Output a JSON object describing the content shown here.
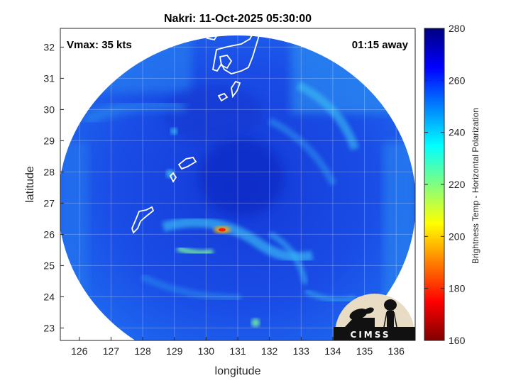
{
  "title": "Nakri: 11-Oct-2025 05:30:00",
  "overlay": {
    "vmax": "Vmax: 35 kts",
    "time_away": "01:15 away"
  },
  "axes": {
    "xlabel": "longitude",
    "ylabel": "latitude",
    "xticks": [
      126,
      127,
      128,
      129,
      130,
      131,
      132,
      133,
      134,
      135,
      136
    ],
    "yticks": [
      23,
      24,
      25,
      26,
      27,
      28,
      29,
      30,
      31,
      32
    ],
    "xlim": [
      125.4,
      136.6
    ],
    "ylim": [
      22.6,
      32.6
    ],
    "grid": true
  },
  "colorbar": {
    "label": "Brightness Temp - Horizontal Polarization",
    "ticks": [
      160,
      180,
      200,
      220,
      240,
      260,
      280
    ],
    "range": [
      160,
      280
    ],
    "colormap": "jet"
  },
  "logo": {
    "text": "CIMSS"
  },
  "colors": {
    "background_field": "#1846e0",
    "coastline": "#ffffff"
  }
}
